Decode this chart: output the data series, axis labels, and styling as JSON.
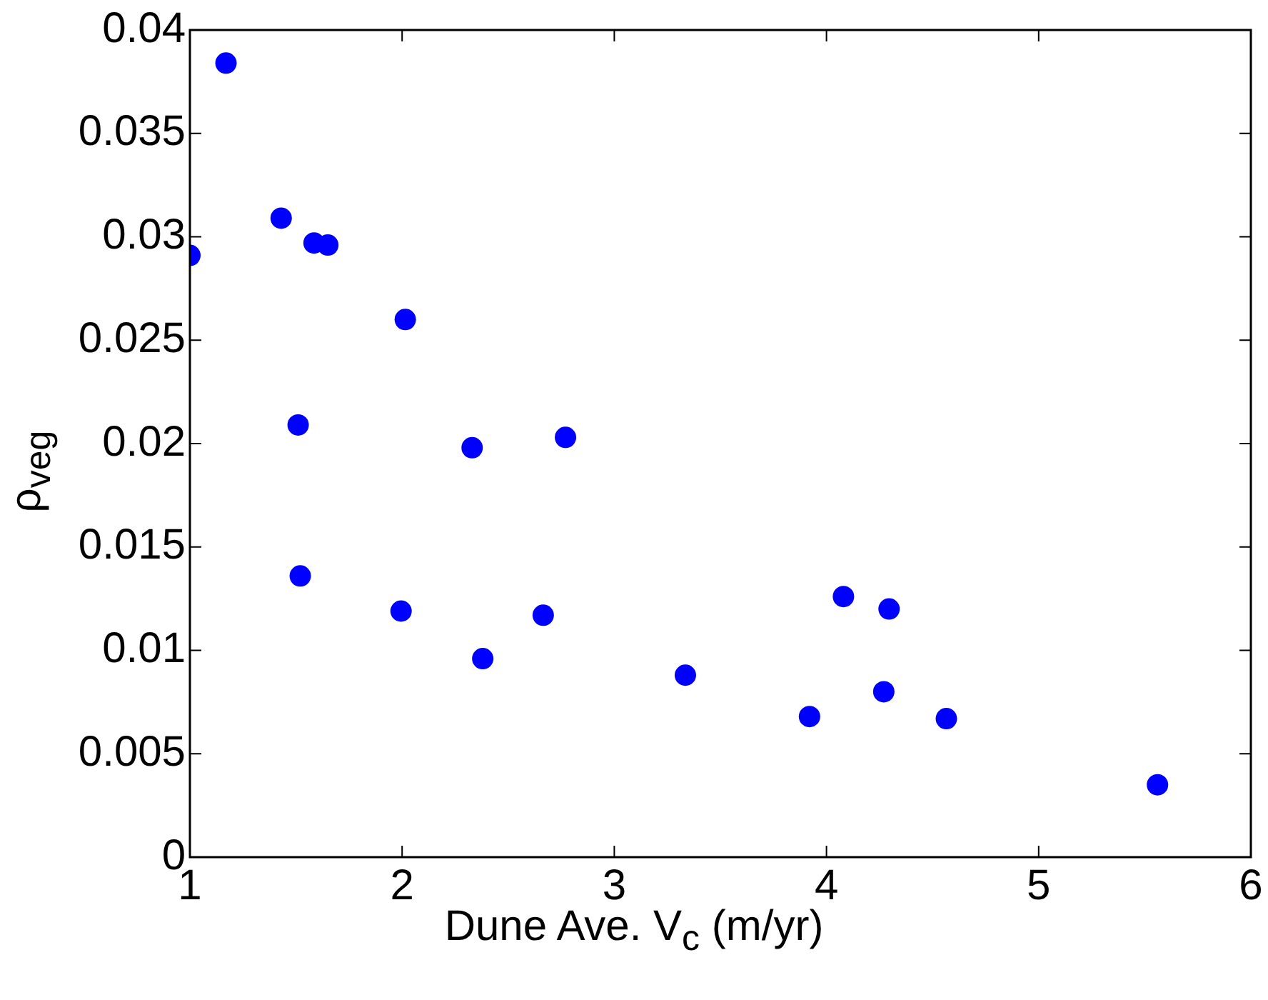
{
  "chart_data": {
    "type": "scatter",
    "xlabel": "Dune Ave. V$_{c}$ (m/yr)",
    "ylabel": "ρ$_{veg}$",
    "x": [
      1.0,
      1.17,
      1.43,
      1.585,
      1.65,
      2.015,
      1.51,
      2.33,
      2.77,
      1.52,
      1.995,
      2.38,
      2.665,
      3.335,
      3.92,
      4.08,
      4.295,
      4.27,
      4.565,
      5.56
    ],
    "series": [
      {
        "color": "#0000ff",
        "values": [
          0.0291,
          0.0384,
          0.0309,
          0.0297,
          0.0296,
          0.026,
          0.0209,
          0.0198,
          0.0203,
          0.0136,
          0.0119,
          0.0096,
          0.0117,
          0.0088,
          0.0068,
          0.0126,
          0.012,
          0.008,
          0.0067,
          0.0035
        ]
      }
    ],
    "xlim": [
      1,
      6
    ],
    "xticks": [
      1,
      2,
      3,
      4,
      5,
      6
    ],
    "ylim": [
      0,
      0.04
    ],
    "yticks": [
      0,
      0.005,
      0.01,
      0.015,
      0.02,
      0.025,
      0.03,
      0.035,
      0.04
    ],
    "marker": "circle",
    "legend": false
  }
}
